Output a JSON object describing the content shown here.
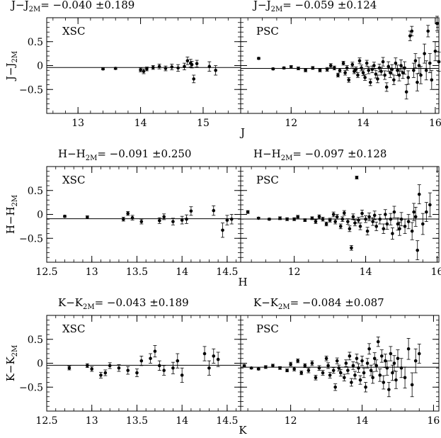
{
  "chart_data": [
    {
      "type": "scatter",
      "title": "J−J",
      "title_sub": "2M",
      "title_stats": "=  −0.040  ±0.189",
      "xlabel": "",
      "ylabel": "J−J",
      "ylabel_sub": "2M",
      "xlim": [
        12.5,
        15.6
      ],
      "ylim": [
        -1.0,
        1.0
      ],
      "xticks": [
        13,
        14,
        15
      ],
      "xtick_labels": [
        "13",
        "14",
        "15"
      ],
      "yticks": [
        -0.5,
        0,
        0.5
      ],
      "ytick_labels": [
        "−0.5",
        "0",
        "0.5"
      ],
      "ref_line": -0.04,
      "annotation": "XSC",
      "points": [
        [
          13.4,
          -0.07,
          0.02
        ],
        [
          13.6,
          -0.06,
          0.02
        ],
        [
          14.0,
          -0.09,
          0.04
        ],
        [
          14.05,
          -0.12,
          0.05
        ],
        [
          14.1,
          -0.07,
          0.04
        ],
        [
          14.2,
          -0.04,
          0.04
        ],
        [
          14.3,
          -0.02,
          0.05
        ],
        [
          14.4,
          -0.06,
          0.05
        ],
        [
          14.5,
          -0.03,
          0.06
        ],
        [
          14.6,
          -0.05,
          0.07
        ],
        [
          14.7,
          -0.02,
          0.07
        ],
        [
          14.75,
          0.1,
          0.08
        ],
        [
          14.8,
          0.05,
          0.08
        ],
        [
          14.82,
          0.02,
          0.07
        ],
        [
          14.85,
          -0.28,
          0.08
        ],
        [
          14.9,
          0.04,
          0.07
        ],
        [
          15.1,
          -0.02,
          0.1
        ],
        [
          15.2,
          -0.1,
          0.1
        ]
      ]
    },
    {
      "type": "scatter",
      "title": "J−J",
      "title_sub": "2M",
      "title_stats": "=  −0.059  ±0.124",
      "xlabel": "J",
      "ylabel": "",
      "xlim": [
        10.6,
        16.1
      ],
      "ylim": [
        -1.0,
        1.0
      ],
      "xticks": [
        12,
        14,
        16
      ],
      "xtick_labels": [
        "12",
        "14",
        "16"
      ],
      "yticks": [
        -0.5,
        0,
        0.5
      ],
      "ref_line": -0.059,
      "annotation": "PSC",
      "points": [
        [
          11.1,
          0.15,
          0.02
        ],
        [
          11.5,
          -0.07,
          0.02
        ],
        [
          11.8,
          -0.05,
          0.02
        ],
        [
          12.0,
          -0.03,
          0.03
        ],
        [
          12.2,
          -0.06,
          0.03
        ],
        [
          12.4,
          -0.1,
          0.03
        ],
        [
          12.6,
          -0.05,
          0.03
        ],
        [
          12.8,
          -0.1,
          0.03
        ],
        [
          13.0,
          -0.08,
          0.04
        ],
        [
          13.1,
          0.0,
          0.04
        ],
        [
          13.2,
          -0.05,
          0.04
        ],
        [
          13.3,
          -0.2,
          0.04
        ],
        [
          13.35,
          -0.1,
          0.04
        ],
        [
          13.45,
          0.05,
          0.04
        ],
        [
          13.5,
          -0.15,
          0.05
        ],
        [
          13.55,
          -0.05,
          0.05
        ],
        [
          13.6,
          -0.3,
          0.05
        ],
        [
          13.7,
          0.02,
          0.05
        ],
        [
          13.75,
          -0.12,
          0.05
        ],
        [
          13.8,
          -0.08,
          0.05
        ],
        [
          13.85,
          -0.2,
          0.05
        ],
        [
          13.9,
          0.1,
          0.06
        ],
        [
          13.95,
          -0.05,
          0.06
        ],
        [
          14.0,
          -0.15,
          0.06
        ],
        [
          14.05,
          -0.25,
          0.06
        ],
        [
          14.1,
          0.05,
          0.06
        ],
        [
          14.15,
          -0.1,
          0.07
        ],
        [
          14.2,
          -0.35,
          0.07
        ],
        [
          14.25,
          -0.08,
          0.07
        ],
        [
          14.3,
          0.0,
          0.07
        ],
        [
          14.35,
          -0.18,
          0.08
        ],
        [
          14.4,
          -0.28,
          0.08
        ],
        [
          14.45,
          -0.05,
          0.08
        ],
        [
          14.5,
          -0.12,
          0.08
        ],
        [
          14.55,
          0.08,
          0.09
        ],
        [
          14.6,
          -0.2,
          0.09
        ],
        [
          14.65,
          -0.45,
          0.09
        ],
        [
          14.7,
          -0.02,
          0.1
        ],
        [
          14.75,
          -0.15,
          0.1
        ],
        [
          14.8,
          -0.08,
          0.1
        ],
        [
          14.85,
          -0.3,
          0.1
        ],
        [
          14.9,
          0.05,
          0.11
        ],
        [
          14.95,
          -0.1,
          0.11
        ],
        [
          15.0,
          -0.2,
          0.12
        ],
        [
          15.05,
          0.0,
          0.12
        ],
        [
          15.1,
          -0.15,
          0.12
        ],
        [
          15.15,
          -0.05,
          0.13
        ],
        [
          15.2,
          -0.55,
          0.15
        ],
        [
          15.25,
          -0.25,
          0.14
        ],
        [
          15.3,
          0.62,
          0.1
        ],
        [
          15.35,
          0.72,
          0.1
        ],
        [
          15.4,
          -0.1,
          0.15
        ],
        [
          15.45,
          0.1,
          0.15
        ],
        [
          15.5,
          -0.35,
          0.18
        ],
        [
          15.55,
          0.0,
          0.16
        ],
        [
          15.6,
          -0.2,
          0.18
        ],
        [
          15.7,
          0.25,
          0.2
        ],
        [
          15.75,
          -0.1,
          0.2
        ],
        [
          15.8,
          0.72,
          0.12
        ],
        [
          15.85,
          0.05,
          0.2
        ],
        [
          15.9,
          -0.3,
          0.2
        ],
        [
          16.0,
          0.3,
          0.2
        ],
        [
          16.05,
          0.88,
          0.15
        ],
        [
          16.1,
          0.08,
          0.2
        ]
      ]
    },
    {
      "type": "scatter",
      "title": "H−H",
      "title_sub": "2M",
      "title_stats": "=   −0.091  ±0.250",
      "xlabel": "",
      "ylabel": "H−H",
      "ylabel_sub": "2M",
      "xlim": [
        12.5,
        14.65
      ],
      "ylim": [
        -1.0,
        1.0
      ],
      "xticks": [
        12.5,
        13,
        13.5,
        14,
        14.5
      ],
      "xtick_labels": [
        "12.5",
        "13",
        "13.5",
        "14",
        "14.5"
      ],
      "yticks": [
        -0.5,
        0,
        0.5
      ],
      "ytick_labels": [
        "−0.5",
        "0",
        "0.5"
      ],
      "ref_line": -0.091,
      "annotation": "XSC",
      "points": [
        [
          12.7,
          -0.04,
          0.02
        ],
        [
          12.95,
          -0.06,
          0.03
        ],
        [
          13.35,
          -0.1,
          0.04
        ],
        [
          13.4,
          0.02,
          0.04
        ],
        [
          13.45,
          -0.07,
          0.05
        ],
        [
          13.55,
          -0.15,
          0.05
        ],
        [
          13.75,
          -0.13,
          0.06
        ],
        [
          13.8,
          -0.05,
          0.06
        ],
        [
          13.9,
          -0.15,
          0.07
        ],
        [
          14.0,
          -0.12,
          0.08
        ],
        [
          14.05,
          -0.1,
          0.09
        ],
        [
          14.1,
          0.07,
          0.09
        ],
        [
          14.35,
          0.08,
          0.1
        ],
        [
          14.45,
          -0.33,
          0.15
        ],
        [
          14.5,
          -0.12,
          0.1
        ],
        [
          14.55,
          -0.1,
          0.1
        ]
      ]
    },
    {
      "type": "scatter",
      "title": "H−H",
      "title_sub": "2M",
      "title_stats": "=  −0.097  ±0.128",
      "xlabel": "H",
      "ylabel": "",
      "xlim": [
        10.5,
        16.05
      ],
      "ylim": [
        -1.0,
        1.0
      ],
      "xticks": [
        12,
        14,
        16
      ],
      "xtick_labels": [
        "12",
        "14",
        "16"
      ],
      "yticks": [
        -0.5,
        0,
        0.5
      ],
      "ref_line": -0.097,
      "annotation": "PSC",
      "points": [
        [
          10.7,
          0.05,
          0.03
        ],
        [
          11.0,
          -0.08,
          0.02
        ],
        [
          11.3,
          -0.1,
          0.02
        ],
        [
          11.6,
          -0.08,
          0.03
        ],
        [
          11.8,
          -0.1,
          0.03
        ],
        [
          12.0,
          -0.1,
          0.03
        ],
        [
          12.1,
          -0.05,
          0.03
        ],
        [
          12.3,
          -0.12,
          0.03
        ],
        [
          12.5,
          -0.08,
          0.03
        ],
        [
          12.6,
          -0.15,
          0.04
        ],
        [
          12.7,
          -0.05,
          0.04
        ],
        [
          12.8,
          -0.1,
          0.04
        ],
        [
          12.9,
          -0.2,
          0.04
        ],
        [
          13.0,
          -0.12,
          0.04
        ],
        [
          13.1,
          0.0,
          0.05
        ],
        [
          13.15,
          -0.15,
          0.05
        ],
        [
          13.2,
          -0.05,
          0.05
        ],
        [
          13.3,
          -0.25,
          0.05
        ],
        [
          13.35,
          -0.1,
          0.05
        ],
        [
          13.4,
          0.03,
          0.05
        ],
        [
          13.5,
          -0.15,
          0.06
        ],
        [
          13.55,
          -0.3,
          0.06
        ],
        [
          13.6,
          -0.7,
          0.05
        ],
        [
          13.65,
          -0.05,
          0.06
        ],
        [
          13.7,
          -0.18,
          0.06
        ],
        [
          13.75,
          0.77,
          0.03
        ],
        [
          13.8,
          -0.12,
          0.06
        ],
        [
          13.85,
          -0.25,
          0.07
        ],
        [
          13.9,
          0.02,
          0.07
        ],
        [
          14.0,
          -0.1,
          0.07
        ],
        [
          14.05,
          -0.35,
          0.08
        ],
        [
          14.1,
          -0.05,
          0.08
        ],
        [
          14.2,
          -0.15,
          0.08
        ],
        [
          14.25,
          -0.02,
          0.09
        ],
        [
          14.3,
          -0.25,
          0.09
        ],
        [
          14.4,
          -0.1,
          0.1
        ],
        [
          14.5,
          -0.3,
          0.1
        ],
        [
          14.55,
          0.0,
          0.1
        ],
        [
          14.6,
          -0.2,
          0.11
        ],
        [
          14.7,
          -0.1,
          0.12
        ],
        [
          14.75,
          -0.4,
          0.12
        ],
        [
          14.8,
          0.05,
          0.12
        ],
        [
          14.9,
          -0.2,
          0.13
        ],
        [
          14.95,
          -0.3,
          0.14
        ],
        [
          15.0,
          -0.1,
          0.14
        ],
        [
          15.1,
          -0.25,
          0.15
        ],
        [
          15.2,
          -0.15,
          0.15
        ],
        [
          15.3,
          -0.35,
          0.18
        ],
        [
          15.35,
          0.05,
          0.18
        ],
        [
          15.4,
          -0.05,
          0.2
        ],
        [
          15.45,
          -0.75,
          0.2
        ],
        [
          15.5,
          0.42,
          0.2
        ],
        [
          15.6,
          -0.2,
          0.22
        ],
        [
          15.7,
          0.05,
          0.2
        ],
        [
          15.8,
          0.2,
          0.25
        ]
      ]
    },
    {
      "type": "scatter",
      "title": "K−K",
      "title_sub": "2M",
      "title_stats": "=   −0.043  ±0.189",
      "xlabel": "",
      "ylabel": "K−K",
      "ylabel_sub": "2M",
      "xlim": [
        12.5,
        14.65
      ],
      "ylim": [
        -1.0,
        1.0
      ],
      "xticks": [
        12.5,
        13,
        13.5,
        14,
        14.5
      ],
      "xtick_labels": [
        "12.5",
        "13",
        "13.5",
        "14",
        "14.5"
      ],
      "yticks": [
        -0.5,
        0,
        0.5
      ],
      "ytick_labels": [
        "−0.5",
        "0",
        "0.5"
      ],
      "ref_line": -0.043,
      "annotation": "XSC",
      "points": [
        [
          12.75,
          -0.1,
          0.04
        ],
        [
          12.95,
          -0.05,
          0.04
        ],
        [
          13.0,
          -0.12,
          0.05
        ],
        [
          13.1,
          -0.25,
          0.06
        ],
        [
          13.15,
          -0.2,
          0.06
        ],
        [
          13.2,
          -0.05,
          0.06
        ],
        [
          13.3,
          -0.1,
          0.07
        ],
        [
          13.4,
          -0.15,
          0.08
        ],
        [
          13.5,
          -0.2,
          0.08
        ],
        [
          13.55,
          0.05,
          0.1
        ],
        [
          13.65,
          0.1,
          0.1
        ],
        [
          13.7,
          0.25,
          0.12
        ],
        [
          13.75,
          -0.05,
          0.1
        ],
        [
          13.8,
          -0.15,
          0.1
        ],
        [
          13.9,
          -0.1,
          0.12
        ],
        [
          13.95,
          0.05,
          0.15
        ],
        [
          14.0,
          -0.25,
          0.15
        ],
        [
          14.25,
          0.2,
          0.15
        ],
        [
          14.3,
          -0.1,
          0.15
        ],
        [
          14.35,
          0.15,
          0.15
        ],
        [
          14.4,
          0.08,
          0.15
        ]
      ]
    },
    {
      "type": "scatter",
      "title": "K−K",
      "title_sub": "2M",
      "title_stats": "=  −0.084  ±0.087",
      "xlabel": "K",
      "ylabel": "",
      "xlim": [
        10.6,
        16.15
      ],
      "ylim": [
        -1.0,
        1.0
      ],
      "xticks": [
        12,
        14,
        16
      ],
      "xtick_labels": [
        "12",
        "14",
        "16"
      ],
      "yticks": [
        -0.5,
        0,
        0.5
      ],
      "ref_line": -0.084,
      "annotation": "PSC",
      "points": [
        [
          10.7,
          -0.05,
          0.02
        ],
        [
          10.9,
          -0.1,
          0.02
        ],
        [
          11.1,
          -0.12,
          0.02
        ],
        [
          11.3,
          -0.08,
          0.03
        ],
        [
          11.5,
          -0.05,
          0.03
        ],
        [
          11.7,
          -0.1,
          0.03
        ],
        [
          11.9,
          -0.15,
          0.03
        ],
        [
          12.0,
          -0.02,
          0.04
        ],
        [
          12.1,
          -0.12,
          0.04
        ],
        [
          12.2,
          0.05,
          0.04
        ],
        [
          12.3,
          -0.2,
          0.04
        ],
        [
          12.4,
          -0.05,
          0.04
        ],
        [
          12.5,
          -0.15,
          0.05
        ],
        [
          12.6,
          0.0,
          0.05
        ],
        [
          12.7,
          -0.3,
          0.05
        ],
        [
          12.8,
          -0.1,
          0.05
        ],
        [
          12.9,
          -0.2,
          0.05
        ],
        [
          13.0,
          0.1,
          0.05
        ],
        [
          13.05,
          -0.05,
          0.06
        ],
        [
          13.1,
          -0.25,
          0.06
        ],
        [
          13.2,
          -0.15,
          0.06
        ],
        [
          13.25,
          -0.5,
          0.07
        ],
        [
          13.3,
          0.05,
          0.06
        ],
        [
          13.35,
          -0.1,
          0.06
        ],
        [
          13.4,
          -0.2,
          0.07
        ],
        [
          13.5,
          -0.3,
          0.07
        ],
        [
          13.55,
          0.0,
          0.07
        ],
        [
          13.6,
          -0.15,
          0.07
        ],
        [
          13.65,
          0.15,
          0.08
        ],
        [
          13.7,
          -0.4,
          0.08
        ],
        [
          13.75,
          -0.05,
          0.08
        ],
        [
          13.8,
          -0.25,
          0.08
        ],
        [
          13.85,
          0.1,
          0.09
        ],
        [
          13.9,
          -0.1,
          0.09
        ],
        [
          13.95,
          -0.35,
          0.09
        ],
        [
          14.0,
          0.05,
          0.1
        ],
        [
          14.05,
          -0.2,
          0.1
        ],
        [
          14.1,
          -0.5,
          0.1
        ],
        [
          14.15,
          0.0,
          0.1
        ],
        [
          14.2,
          0.3,
          0.11
        ],
        [
          14.25,
          -0.15,
          0.11
        ],
        [
          14.3,
          -0.3,
          0.12
        ],
        [
          14.35,
          0.1,
          0.12
        ],
        [
          14.4,
          -0.05,
          0.12
        ],
        [
          14.45,
          0.45,
          0.1
        ],
        [
          14.5,
          -0.25,
          0.13
        ],
        [
          14.55,
          0.15,
          0.13
        ],
        [
          14.6,
          -0.4,
          0.14
        ],
        [
          14.65,
          0.05,
          0.14
        ],
        [
          14.7,
          -0.1,
          0.15
        ],
        [
          14.75,
          -0.55,
          0.15
        ],
        [
          14.8,
          0.2,
          0.15
        ],
        [
          14.85,
          -0.2,
          0.16
        ],
        [
          14.9,
          0.0,
          0.16
        ],
        [
          14.95,
          -0.35,
          0.18
        ],
        [
          15.0,
          0.1,
          0.18
        ],
        [
          15.1,
          -0.1,
          0.2
        ],
        [
          15.2,
          -0.3,
          0.22
        ],
        [
          15.3,
          0.3,
          0.22
        ],
        [
          15.4,
          -0.45,
          0.25
        ],
        [
          15.5,
          0.05,
          0.25
        ],
        [
          15.6,
          0.2,
          0.2
        ]
      ]
    }
  ]
}
